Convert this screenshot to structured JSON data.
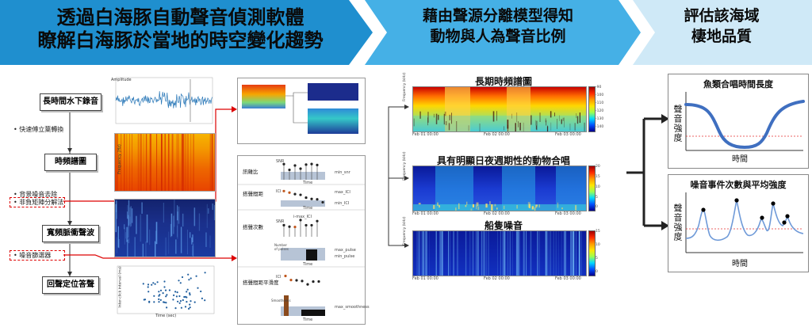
{
  "banner": {
    "step1_line1": "透過白海豚自動聲音偵測軟體",
    "step1_line2": "瞭解白海豚於當地的時空變化趨勢",
    "step2_line1": "藉由聲源分離模型得知",
    "step2_line2": "動物與人為聲音比例",
    "step3_line1": "評估該海域",
    "step3_line2": "棲地品質",
    "colors": {
      "dark": "#1f8fcf",
      "mid": "#45b0e6",
      "light": "#cfe9f7"
    }
  },
  "flow": {
    "steps": [
      "長時間水下錄音",
      "時頻譜圖",
      "寬頻脈衝聲波",
      "回聲定位答聲"
    ],
    "bullets": {
      "b1": "快速傅立葉轉換",
      "b2": "背景噪音去除",
      "b3": "非負矩陣分解法",
      "b4": "噪音篩選器"
    }
  },
  "plots": {
    "waveform_ylabel": "Amplitude",
    "spectrogram_ylabel": "Frequency (Hz)",
    "clicks_ylabel": "Inter-click interval (ms)",
    "clicks_xlabel": "Time (sec)"
  },
  "features": {
    "rows": [
      {
        "label": "訊雜比",
        "ylabel": "SNR",
        "stat1": "min_snr"
      },
      {
        "label": "搭聲間距",
        "ylabel": "ICI",
        "stat1": "max_ICI",
        "stat2": "min_ICI"
      },
      {
        "label": "搭聲次數",
        "ylabel": "SNR",
        "stat1": "max_pulse",
        "stat2": "min_pulse",
        "annot": "i-max_ICI",
        "ylabel2": "Number of pulses"
      },
      {
        "label": "搭聲間距平滑度",
        "ylabel": "ICI",
        "stat1": "max_smoothness",
        "ylabel2": "Smoothness"
      }
    ],
    "xlabel": "Time"
  },
  "spectros": {
    "title1": "長期時頻譜圖",
    "title2": "具有明顯日夜週期性的動物合唱",
    "title3": "船隻噪音",
    "ylabel": "Frequency (kHz)",
    "xticks": [
      "Feb 01 00:00",
      "Feb 02 00:00",
      "Feb 03 00:00"
    ],
    "cbar1": [
      "-90",
      "-100",
      "-110",
      "-120",
      "-130",
      "-140"
    ],
    "cbar2": [
      "20",
      "15",
      "10",
      "5",
      "0"
    ],
    "cbar3": [
      "15",
      "10",
      "5",
      "0"
    ]
  },
  "result": {
    "title1": "魚類合唱時間長度",
    "title2": "噪音事件次數與平均強度",
    "ylabel": "聲音強度",
    "xlabel": "時間",
    "line_color": "#3f6fc0",
    "threshold_color": "#e53030"
  }
}
